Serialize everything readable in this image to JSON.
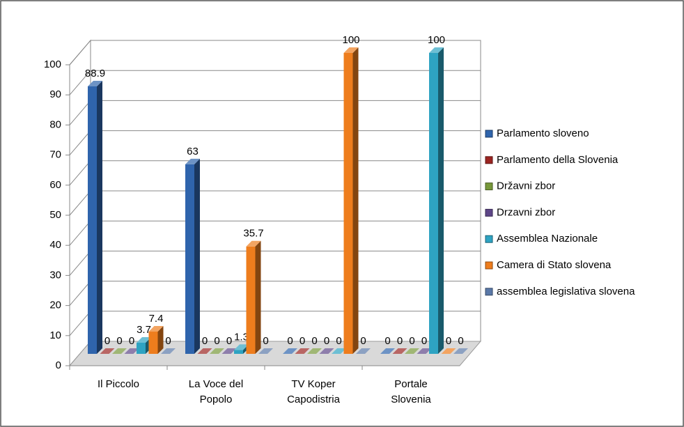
{
  "chart_data": {
    "type": "bar3d",
    "categories": [
      "Il Piccolo",
      "La Voce del Popolo",
      "TV Koper Capodistria",
      "Portale Slovenia"
    ],
    "series": [
      {
        "name": "Parlamento sloveno",
        "color": "#2f64ac",
        "values": [
          88.9,
          63,
          0,
          0
        ]
      },
      {
        "name": "Parlamento della Slovenia",
        "color": "#9b2421",
        "values": [
          0,
          0,
          0,
          0
        ]
      },
      {
        "name": "Državni zbor",
        "color": "#77983a",
        "values": [
          0,
          0,
          0,
          0
        ]
      },
      {
        "name": "Drzavni zbor",
        "color": "#5e4688",
        "values": [
          0,
          0,
          0,
          0
        ]
      },
      {
        "name": "Assemblea Nazionale",
        "color": "#2ea3c2",
        "values": [
          3.7,
          1.3,
          0,
          100
        ]
      },
      {
        "name": "Camera di Stato slovena",
        "color": "#ee7d1d",
        "values": [
          7.4,
          35.7,
          100,
          0
        ]
      },
      {
        "name": "assemblea legislativa slovena",
        "color": "#5a78a8",
        "values": [
          0,
          0,
          0,
          0
        ]
      }
    ],
    "ylim": [
      0,
      100
    ],
    "yticks": [
      0,
      10,
      20,
      30,
      40,
      50,
      60,
      70,
      80,
      90,
      100
    ],
    "grid": true,
    "legend": "right"
  }
}
